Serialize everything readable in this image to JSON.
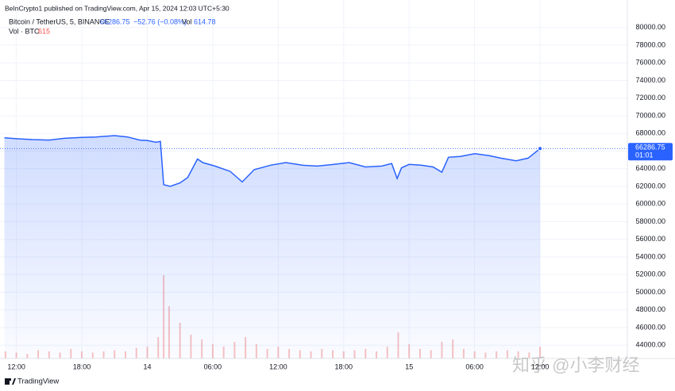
{
  "header": {
    "publisher": "BeInCrypto1 published on TradingView.com, Apr 15, 2024 12:03 UTC+5:30",
    "symbol": "Bitcoin / TetherUS, 5, BINANCE",
    "change": "−52.76 (−0.08%)",
    "vol_label": "Vol",
    "vol_value": "614.78",
    "vol_legend": "Vol · BTC",
    "vol_legend_value": "615"
  },
  "chart_data": {
    "type": "line",
    "x": [
      10.9,
      12,
      13.5,
      15,
      16.4,
      18,
      19.3,
      21,
      22.2,
      23.3,
      24,
      24.8,
      25.2,
      25.5,
      26.1,
      27,
      27.7,
      28.6,
      29.1,
      30.2,
      31.6,
      32.7,
      33.8,
      35.3,
      36.7,
      38.2,
      39.6,
      41.1,
      42.5,
      44,
      45.5,
      46.4,
      46.9,
      47.3,
      48,
      49.1,
      50.2,
      51,
      51.6,
      52.7,
      54,
      55.3,
      56.4,
      57.8,
      58.9,
      60
    ],
    "series": [
      {
        "name": "Bitcoin / TetherUS",
        "color": "#2962ff",
        "values": [
          67500,
          67400,
          67300,
          67250,
          67450,
          67550,
          67600,
          67750,
          67600,
          67250,
          67200,
          67000,
          67100,
          62200,
          62000,
          62400,
          63000,
          65100,
          64700,
          64300,
          63700,
          62500,
          63900,
          64400,
          64700,
          64400,
          64300,
          64500,
          64700,
          64200,
          64300,
          64600,
          62900,
          64100,
          64500,
          64400,
          64200,
          63600,
          65300,
          65400,
          65700,
          65500,
          65200,
          64900,
          65200,
          66286.75
        ]
      }
    ],
    "volume": {
      "name": "Vol · BTC",
      "color": "#ef5350",
      "x": [
        11,
        12,
        13,
        14,
        15,
        16,
        17,
        18,
        19,
        20,
        21,
        22,
        23,
        24,
        25,
        25.5,
        26,
        27,
        28,
        29,
        30,
        31,
        32,
        33,
        34,
        35,
        36,
        37,
        38,
        39,
        40,
        41,
        42,
        43,
        44,
        45,
        46,
        47,
        48,
        49,
        50,
        51,
        52,
        53,
        54,
        55,
        56,
        57,
        58,
        59,
        60
      ],
      "values": [
        300,
        250,
        200,
        350,
        300,
        250,
        400,
        300,
        250,
        300,
        350,
        300,
        450,
        500,
        900,
        3500,
        2200,
        1500,
        1000,
        800,
        600,
        500,
        700,
        900,
        600,
        400,
        500,
        400,
        350,
        300,
        400,
        350,
        300,
        350,
        400,
        300,
        500,
        1100,
        600,
        400,
        350,
        700,
        800,
        400,
        300,
        250,
        300,
        350,
        300,
        250,
        500
      ],
      "y2lim": [
        0,
        5000
      ]
    },
    "last_time": "01:01",
    "xlim": [
      10.5,
      68
    ],
    "xticks": [
      {
        "value": 12,
        "label": "12:00"
      },
      {
        "value": 18,
        "label": "18:00"
      },
      {
        "value": 24,
        "label": "14"
      },
      {
        "value": 30,
        "label": "06:00"
      },
      {
        "value": 36,
        "label": "12:00"
      },
      {
        "value": 42,
        "label": "18:00"
      },
      {
        "value": 48,
        "label": "15"
      },
      {
        "value": 54,
        "label": "06:00"
      },
      {
        "value": 60,
        "label": "12:00"
      }
    ],
    "ylim": [
      42500,
      82400
    ],
    "yticks": [
      {
        "value": 44000,
        "label": "44000.00"
      },
      {
        "value": 46000,
        "label": "46000.00"
      },
      {
        "value": 48000,
        "label": "48000.00"
      },
      {
        "value": 50000,
        "label": "50000.00"
      },
      {
        "value": 52000,
        "label": "52000.00"
      },
      {
        "value": 54000,
        "label": "54000.00"
      },
      {
        "value": 56000,
        "label": "56000.00"
      },
      {
        "value": 58000,
        "label": "58000.00"
      },
      {
        "value": 60000,
        "label": "60000.00"
      },
      {
        "value": 62000,
        "label": "62000.00"
      },
      {
        "value": 64000,
        "label": "64000.00"
      },
      {
        "value": 66000,
        "label": "66000.00"
      },
      {
        "value": 68000,
        "label": "68000.00"
      },
      {
        "value": 70000,
        "label": "70000.00"
      },
      {
        "value": 72000,
        "label": "72000.00"
      },
      {
        "value": 74000,
        "label": "74000.00"
      },
      {
        "value": 76000,
        "label": "76000.00"
      },
      {
        "value": 78000,
        "label": "78000.00"
      },
      {
        "value": 80000,
        "label": "80000.00"
      }
    ],
    "grid": true
  },
  "watermark": "知乎 @小李财经",
  "footer": "TradingView"
}
